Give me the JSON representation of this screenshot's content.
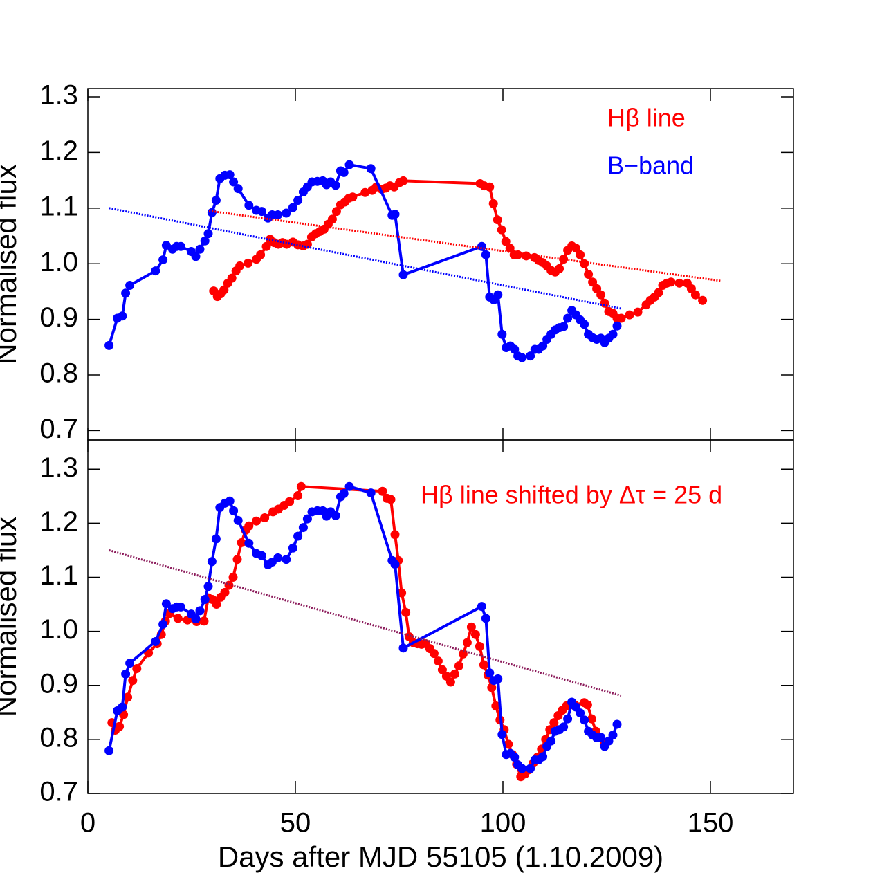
{
  "chart_data": [
    {
      "type": "line",
      "ylabel": "Normalised flux",
      "xlim": [
        0,
        170
      ],
      "ylim": [
        0.683,
        1.315
      ],
      "yticks": [
        0.7,
        0.8,
        0.9,
        {
          "value": 1,
          "label": "1.0"
        },
        1.1,
        1.2,
        1.3
      ],
      "series": [
        {
          "name": "Hβ line",
          "color": "#ff0000",
          "marker": true,
          "style": "solid",
          "x": [
            30.3,
            31.2,
            32.0,
            32.8,
            33.7,
            34.7,
            35.7,
            36.6,
            38.6,
            40.6,
            41.6,
            43.0,
            43.9,
            44.9,
            45.9,
            46.9,
            47.9,
            49.4,
            50.6,
            51.9,
            52.9,
            53.9,
            54.9,
            55.9,
            56.9,
            57.9,
            58.9,
            59.9,
            60.9,
            61.9,
            62.9,
            63.8,
            66.8,
            68.5,
            69.5,
            70.8,
            71.8,
            72.8,
            73.8,
            75.1,
            76.0,
            94.5,
            95.5,
            96.8,
            97.7,
            98.7,
            99.7,
            100.7,
            101.7,
            102.7,
            103.6,
            105.6,
            107.6,
            108.6,
            109.6,
            110.6,
            111.6,
            112.6,
            113.6,
            114.6,
            115.6,
            116.6,
            117.6,
            118.6,
            119.6,
            120.6,
            121.6,
            122.6,
            123.6,
            124.5,
            125.5,
            126.5,
            127.5,
            128.5,
            130.5,
            132.5,
            134.5,
            135.5,
            136.5,
            137.5,
            138.5,
            139.5,
            140.5,
            142.5,
            144.4,
            145.4,
            146.4,
            148.1
          ],
          "values": [
            0.951,
            0.941,
            0.946,
            0.953,
            0.965,
            0.974,
            0.987,
            0.996,
            1.001,
            1.008,
            1.016,
            1.031,
            1.044,
            1.038,
            1.035,
            1.038,
            1.035,
            1.039,
            1.034,
            1.032,
            1.035,
            1.048,
            1.054,
            1.058,
            1.062,
            1.071,
            1.08,
            1.094,
            1.106,
            1.111,
            1.118,
            1.12,
            1.128,
            1.132,
            1.138,
            1.134,
            1.136,
            1.14,
            1.138,
            1.146,
            1.149,
            1.144,
            1.14,
            1.138,
            1.108,
            1.079,
            1.061,
            1.04,
            1.028,
            1.016,
            1.016,
            1.014,
            1.011,
            1.006,
            1.002,
            0.996,
            0.988,
            0.985,
            0.991,
            1.008,
            1.024,
            1.032,
            1.028,
            1.016,
            1.0,
            0.981,
            0.967,
            0.955,
            0.944,
            0.929,
            0.914,
            0.911,
            0.902,
            0.902,
            0.908,
            0.913,
            0.926,
            0.934,
            0.94,
            0.948,
            0.961,
            0.965,
            0.967,
            0.965,
            0.965,
            0.955,
            0.944,
            0.934
          ]
        },
        {
          "name": "B−band",
          "color": "#0000ff",
          "marker": true,
          "style": "solid",
          "x": [
            5.1,
            7.1,
            8.3,
            9.1,
            10.1,
            16.3,
            18.1,
            18.9,
            20.4,
            21.4,
            22.4,
            24.9,
            26.0,
            27.0,
            28.2,
            29.0,
            29.9,
            30.9,
            31.8,
            33.0,
            34.2,
            35.1,
            36.2,
            38.8,
            40.6,
            41.9,
            43.4,
            44.4,
            45.8,
            47.8,
            49.4,
            50.6,
            51.9,
            52.9,
            54.0,
            55.3,
            56.6,
            57.5,
            58.5,
            59.7,
            60.9,
            61.7,
            63.0,
            68.2,
            73.3,
            74.0,
            76.0,
            94.9,
            95.9,
            96.8,
            97.8,
            98.8,
            99.8,
            100.8,
            101.8,
            102.8,
            103.6,
            104.6,
            106.6,
            107.7,
            108.6,
            109.6,
            110.6,
            111.6,
            112.6,
            113.6,
            114.6,
            115.6,
            116.6,
            117.6,
            118.6,
            119.6,
            120.6,
            121.6,
            122.6,
            123.6,
            124.5,
            125.5,
            126.5,
            127.5
          ],
          "values": [
            0.853,
            0.902,
            0.906,
            0.947,
            0.961,
            0.987,
            1.007,
            1.033,
            1.026,
            1.031,
            1.031,
            1.022,
            1.013,
            1.026,
            1.041,
            1.054,
            1.092,
            1.114,
            1.153,
            1.159,
            1.16,
            1.147,
            1.135,
            1.105,
            1.096,
            1.094,
            1.082,
            1.088,
            1.088,
            1.091,
            1.101,
            1.114,
            1.129,
            1.138,
            1.147,
            1.148,
            1.149,
            1.142,
            1.147,
            1.141,
            1.167,
            1.164,
            1.178,
            1.171,
            1.087,
            1.089,
            0.98,
            1.031,
            1.016,
            0.94,
            0.935,
            0.944,
            0.873,
            0.849,
            0.852,
            0.846,
            0.834,
            0.831,
            0.834,
            0.846,
            0.846,
            0.852,
            0.864,
            0.873,
            0.881,
            0.885,
            0.887,
            0.902,
            0.916,
            0.908,
            0.899,
            0.891,
            0.873,
            0.867,
            0.864,
            0.866,
            0.858,
            0.866,
            0.873,
            0.888
          ]
        },
        {
          "color": "#ff0000",
          "marker": false,
          "style": "dotted",
          "x": [
            29.2,
            152.6
          ],
          "values": [
            1.095,
            0.969
          ]
        },
        {
          "color": "#0000ff",
          "marker": false,
          "style": "dotted",
          "x": [
            5.1,
            128.7
          ],
          "values": [
            1.1,
            0.919
          ]
        }
      ]
    },
    {
      "type": "line",
      "ylabel": "Normalised flux",
      "xlabel": "Days after MJD 55105 (1.10.2009)",
      "annotation": "Hβ line shifted by Δτ = 25 d",
      "xlim": [
        0,
        170
      ],
      "ylim": [
        0.7,
        1.354
      ],
      "xticks": [
        0,
        50,
        100,
        150
      ],
      "yticks": [
        0.7,
        0.8,
        0.9,
        {
          "value": 1,
          "label": "1.0"
        },
        1.1,
        1.2,
        1.3
      ],
      "series": [
        {
          "color": "#ff0000",
          "marker": true,
          "style": "solid",
          "x": [
            5.8,
            6.6,
            7.6,
            8.6,
            9.6,
            10.8,
            11.8,
            14.6,
            16.7,
            17.7,
            18.7,
            19.7,
            21.7,
            24.0,
            26.2,
            28.0,
            29.0,
            30.0,
            31.0,
            32.0,
            33.0,
            34.0,
            35.0,
            36.0,
            37.0,
            38.0,
            38.8,
            40.6,
            42.6,
            44.6,
            45.9,
            47.3,
            48.6,
            50.6,
            51.4,
            71.0,
            72.1,
            73.0,
            74.0,
            74.8,
            75.6,
            76.6,
            77.4,
            78.4,
            79.4,
            80.4,
            81.4,
            82.4,
            83.4,
            84.4,
            85.4,
            86.4,
            87.4,
            88.4,
            89.4,
            90.4,
            91.4,
            92.4,
            93.4,
            94.4,
            95.4,
            96.4,
            97.3,
            98.3,
            99.3,
            100.3,
            101.3,
            102.3,
            103.3,
            104.3,
            105.3,
            106.3,
            107.3,
            108.3,
            109.3,
            110.3,
            111.3,
            112.3,
            113.3,
            114.3,
            115.3,
            116.3,
            117.3,
            119.6,
            120.4,
            121.4,
            122.4,
            123.4,
            124.4
          ],
          "values": [
            0.831,
            0.817,
            0.824,
            0.846,
            0.878,
            0.909,
            0.931,
            0.96,
            0.977,
            0.994,
            1.019,
            1.033,
            1.024,
            1.021,
            1.018,
            1.019,
            1.062,
            1.059,
            1.05,
            1.063,
            1.072,
            1.085,
            1.1,
            1.133,
            1.164,
            1.187,
            1.195,
            1.204,
            1.21,
            1.221,
            1.226,
            1.233,
            1.24,
            1.251,
            1.268,
            1.259,
            1.246,
            1.244,
            1.179,
            1.131,
            1.071,
            1.035,
            0.99,
            0.979,
            0.977,
            0.976,
            0.977,
            0.968,
            0.959,
            0.945,
            0.929,
            0.917,
            0.906,
            0.921,
            0.936,
            0.958,
            0.979,
            1.008,
            0.994,
            0.972,
            0.938,
            0.919,
            0.896,
            0.862,
            0.836,
            0.818,
            0.791,
            0.772,
            0.754,
            0.731,
            0.736,
            0.744,
            0.756,
            0.767,
            0.782,
            0.8,
            0.818,
            0.831,
            0.844,
            0.854,
            0.862,
            0.864,
            0.864,
            0.868,
            0.864,
            0.838,
            0.815,
            0.803,
            0.791
          ]
        },
        {
          "color": "#0000ff",
          "marker": true,
          "style": "solid",
          "x": [
            5.1,
            7.1,
            8.3,
            9.1,
            10.1,
            16.3,
            18.1,
            18.9,
            20.4,
            21.4,
            22.4,
            24.9,
            26.0,
            27.0,
            28.2,
            29.0,
            29.9,
            30.9,
            31.8,
            33.0,
            34.2,
            35.1,
            36.2,
            38.8,
            40.6,
            41.9,
            43.4,
            44.4,
            45.8,
            47.8,
            49.4,
            50.6,
            51.9,
            52.9,
            54.0,
            55.3,
            56.6,
            57.5,
            58.5,
            59.7,
            60.9,
            61.7,
            63.0,
            68.2,
            73.3,
            74.0,
            76.0,
            94.9,
            95.9,
            96.8,
            97.8,
            98.8,
            99.8,
            100.8,
            101.8,
            102.8,
            103.6,
            104.6,
            106.6,
            107.7,
            108.6,
            109.6,
            110.6,
            111.6,
            112.6,
            113.6,
            114.6,
            115.6,
            116.6,
            117.6,
            118.6,
            119.6,
            120.6,
            121.6,
            122.6,
            123.6,
            124.5,
            125.5,
            126.5,
            127.5
          ],
          "values": [
            0.779,
            0.853,
            0.86,
            0.921,
            0.941,
            0.981,
            1.013,
            1.051,
            1.042,
            1.045,
            1.045,
            1.032,
            1.023,
            1.038,
            1.059,
            1.083,
            1.129,
            1.171,
            1.229,
            1.237,
            1.241,
            1.223,
            1.205,
            1.163,
            1.144,
            1.14,
            1.123,
            1.128,
            1.136,
            1.133,
            1.154,
            1.176,
            1.192,
            1.208,
            1.221,
            1.223,
            1.223,
            1.213,
            1.221,
            1.214,
            1.249,
            1.255,
            1.268,
            1.256,
            1.131,
            1.124,
            0.969,
            1.046,
            1.024,
            0.923,
            0.909,
            0.912,
            0.809,
            0.772,
            0.774,
            0.767,
            0.753,
            0.746,
            0.746,
            0.762,
            0.762,
            0.768,
            0.787,
            0.797,
            0.815,
            0.818,
            0.823,
            0.838,
            0.869,
            0.86,
            0.849,
            0.836,
            0.815,
            0.808,
            0.803,
            0.804,
            0.787,
            0.797,
            0.808,
            0.828
          ]
        },
        {
          "color": "#8b1a5a",
          "marker": false,
          "style": "dotted",
          "x": [
            5.1,
            128.5
          ],
          "values": [
            1.15,
            0.881
          ]
        }
      ]
    }
  ]
}
